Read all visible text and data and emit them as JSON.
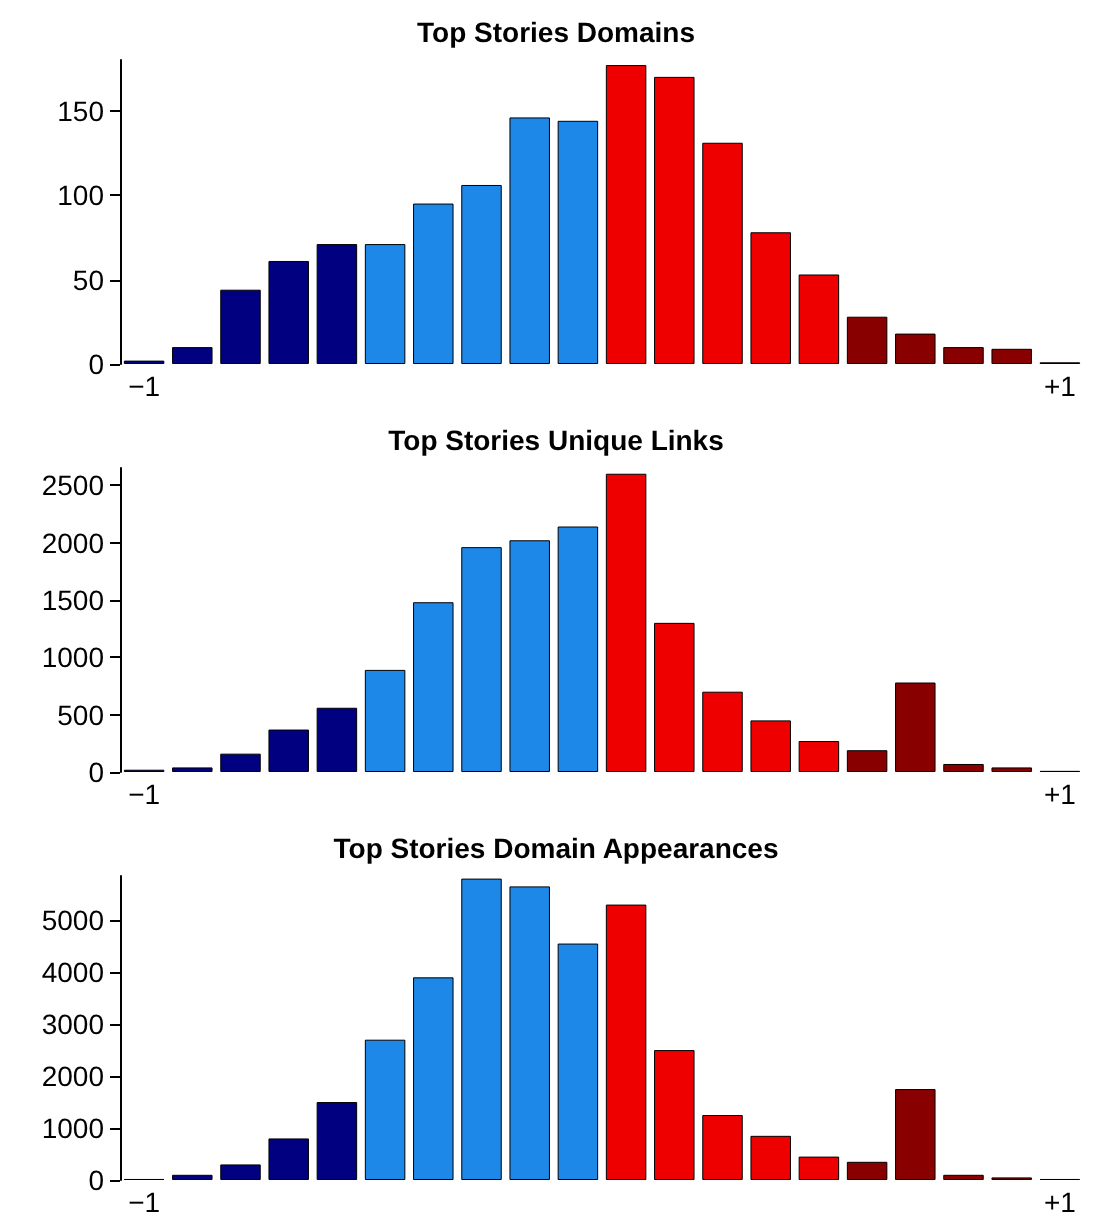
{
  "chart_data": [
    {
      "type": "bar",
      "title": "Top Stories Domains",
      "categories": [
        "−1",
        null,
        null,
        null,
        null,
        null,
        null,
        null,
        null,
        null,
        null,
        null,
        null,
        null,
        null,
        null,
        null,
        null,
        null,
        "+1"
      ],
      "values": [
        2,
        10,
        44,
        61,
        71,
        71,
        95,
        106,
        146,
        144,
        177,
        170,
        131,
        78,
        53,
        28,
        18,
        10,
        9,
        1
      ],
      "colors": [
        "#000080",
        "#000080",
        "#000080",
        "#000080",
        "#000080",
        "#1e88e8",
        "#1e88e8",
        "#1e88e8",
        "#1e88e8",
        "#1e88e8",
        "#ee0000",
        "#ee0000",
        "#ee0000",
        "#ee0000",
        "#ee0000",
        "#880000",
        "#880000",
        "#880000",
        "#880000",
        "#880000"
      ],
      "ylim": [
        0,
        180
      ],
      "yticks": [
        0,
        50,
        100,
        150
      ],
      "grid": false
    },
    {
      "type": "bar",
      "title": "Top Stories Unique Links",
      "categories": [
        "−1",
        null,
        null,
        null,
        null,
        null,
        null,
        null,
        null,
        null,
        null,
        null,
        null,
        null,
        null,
        null,
        null,
        null,
        null,
        "+1"
      ],
      "values": [
        20,
        40,
        160,
        370,
        560,
        890,
        1480,
        1960,
        2020,
        2140,
        2600,
        1300,
        700,
        450,
        270,
        190,
        780,
        70,
        40,
        10
      ],
      "colors": [
        "#000080",
        "#000080",
        "#000080",
        "#000080",
        "#000080",
        "#1e88e8",
        "#1e88e8",
        "#1e88e8",
        "#1e88e8",
        "#1e88e8",
        "#ee0000",
        "#ee0000",
        "#ee0000",
        "#ee0000",
        "#ee0000",
        "#880000",
        "#880000",
        "#880000",
        "#880000",
        "#880000"
      ],
      "ylim": [
        0,
        2650
      ],
      "yticks": [
        0,
        500,
        1000,
        1500,
        2000,
        2500
      ],
      "grid": false
    },
    {
      "type": "bar",
      "title": "Top Stories Domain Appearances",
      "categories": [
        "−1",
        null,
        null,
        null,
        null,
        null,
        null,
        null,
        null,
        null,
        null,
        null,
        null,
        null,
        null,
        null,
        null,
        null,
        null,
        "+1"
      ],
      "values": [
        20,
        100,
        300,
        800,
        1500,
        2700,
        3900,
        5800,
        5650,
        4550,
        5300,
        2500,
        1250,
        850,
        450,
        350,
        1750,
        100,
        50,
        20
      ],
      "colors": [
        "#000080",
        "#000080",
        "#000080",
        "#000080",
        "#000080",
        "#1e88e8",
        "#1e88e8",
        "#1e88e8",
        "#1e88e8",
        "#1e88e8",
        "#ee0000",
        "#ee0000",
        "#ee0000",
        "#ee0000",
        "#ee0000",
        "#880000",
        "#880000",
        "#880000",
        "#880000",
        "#880000"
      ],
      "ylim": [
        0,
        5850
      ],
      "yticks": [
        0,
        1000,
        2000,
        3000,
        4000,
        5000
      ],
      "grid": false
    }
  ]
}
